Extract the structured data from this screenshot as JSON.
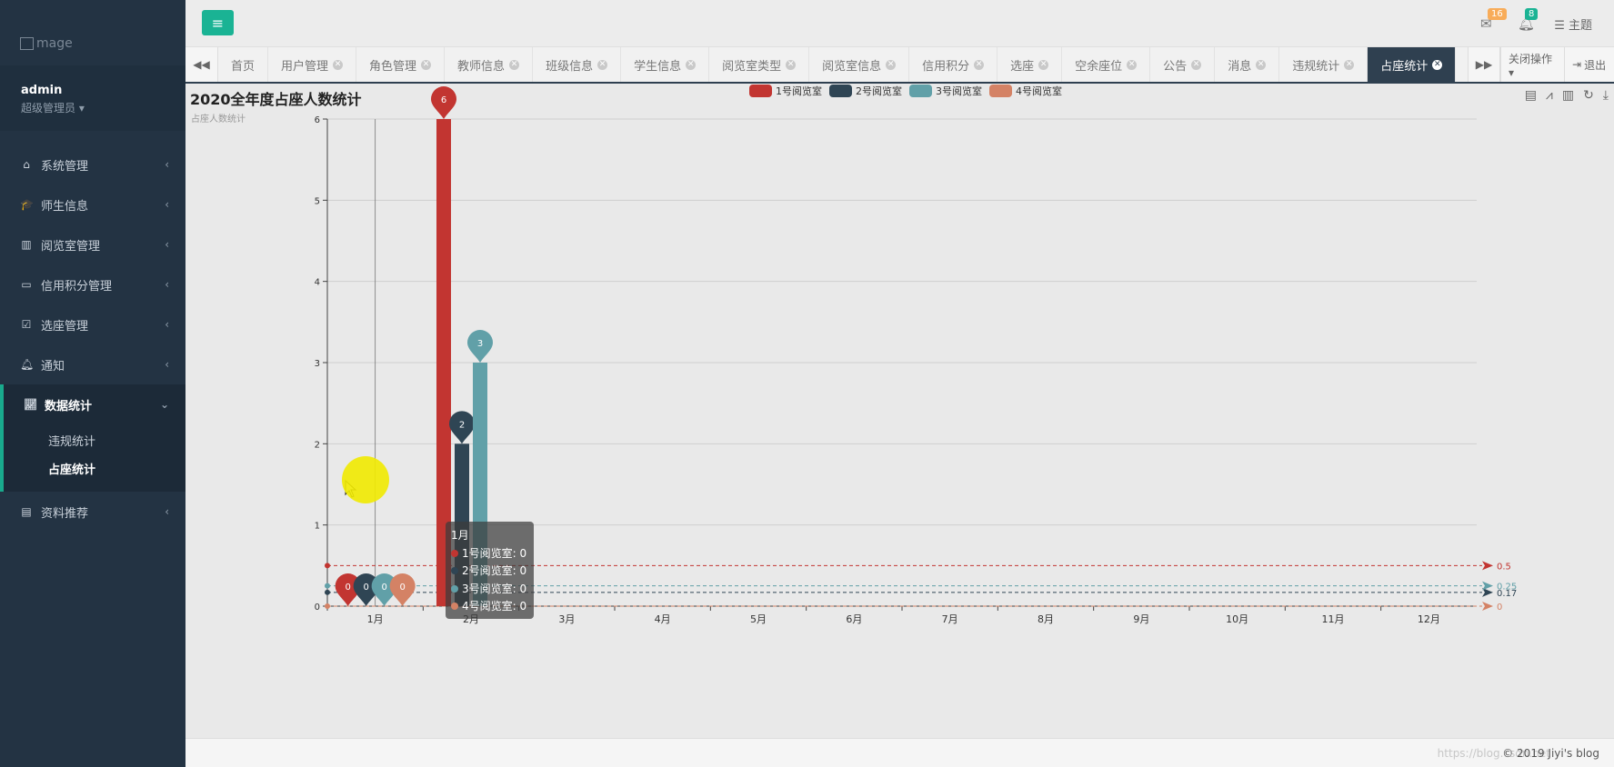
{
  "brand": {
    "text": "mage"
  },
  "user": {
    "name": "admin",
    "role": "超级管理员 ▾"
  },
  "nav": [
    {
      "label": "系统管理",
      "icon": "home-icon"
    },
    {
      "label": "师生信息",
      "icon": "graduation-cap-icon"
    },
    {
      "label": "阅览室管理",
      "icon": "book-icon"
    },
    {
      "label": "信用积分管理",
      "icon": "credit-card-icon"
    },
    {
      "label": "选座管理",
      "icon": "calendar-check-icon"
    },
    {
      "label": "通知",
      "icon": "bell-icon"
    },
    {
      "label": "数据统计",
      "icon": "line-chart-icon"
    },
    {
      "label": "资料推荐",
      "icon": "book-open-icon"
    }
  ],
  "subnav": {
    "violation": "违规统计",
    "occupancy": "占座统计"
  },
  "top": {
    "mail_badge": "16",
    "bell_badge": "8",
    "theme": "主题"
  },
  "tabs": [
    {
      "label": "首页"
    },
    {
      "label": "用户管理"
    },
    {
      "label": "角色管理"
    },
    {
      "label": "教师信息"
    },
    {
      "label": "班级信息"
    },
    {
      "label": "学生信息"
    },
    {
      "label": "阅览室类型"
    },
    {
      "label": "阅览室信息"
    },
    {
      "label": "信用积分"
    },
    {
      "label": "选座"
    },
    {
      "label": "空余座位"
    },
    {
      "label": "公告"
    },
    {
      "label": "消息"
    },
    {
      "label": "违规统计"
    },
    {
      "label": "占座统计"
    }
  ],
  "tab_actions": {
    "close_ops": "关闭操作 ▾",
    "logout": "退出"
  },
  "tooltip": {
    "title": "1月",
    "rows": [
      "1号阅览室: 0",
      "2号阅览室: 0",
      "3号阅览室: 0",
      "4号阅览室: 0"
    ]
  },
  "footer": {
    "copyright": "© 2019 Jiyi's blog",
    "watermark": "https://blog.csdn.net"
  },
  "colors": {
    "s1": "#c23531",
    "s2": "#2f4554",
    "s3": "#61a0a8",
    "s4": "#d48265"
  },
  "chart_data": {
    "type": "bar",
    "title": "2020全年度占座人数统计",
    "subtitle": "占座人数统计",
    "categories": [
      "1月",
      "2月",
      "3月",
      "4月",
      "5月",
      "6月",
      "7月",
      "8月",
      "9月",
      "10月",
      "11月",
      "12月"
    ],
    "series": [
      {
        "name": "1号阅览室",
        "values": [
          0,
          6,
          0,
          0,
          0,
          0,
          0,
          0,
          0,
          0,
          0,
          0
        ],
        "color": "#c23531",
        "average": 0.5
      },
      {
        "name": "2号阅览室",
        "values": [
          0,
          2,
          0,
          0,
          0,
          0,
          0,
          0,
          0,
          0,
          0,
          0
        ],
        "color": "#2f4554",
        "average": 0.17
      },
      {
        "name": "3号阅览室",
        "values": [
          0,
          3,
          0,
          0,
          0,
          0,
          0,
          0,
          0,
          0,
          0,
          0
        ],
        "color": "#61a0a8",
        "average": 0.25
      },
      {
        "name": "4号阅览室",
        "values": [
          0,
          0,
          0,
          0,
          0,
          0,
          0,
          0,
          0,
          0,
          0,
          0
        ],
        "color": "#d48265",
        "average": 0
      }
    ],
    "ylim": [
      0,
      6
    ],
    "yticks": [
      0,
      1,
      2,
      3,
      4,
      5,
      6
    ],
    "markline_labels": [
      "0.5",
      "0.17",
      "0.25",
      "0"
    ],
    "grid": true,
    "legend": "top-center"
  }
}
